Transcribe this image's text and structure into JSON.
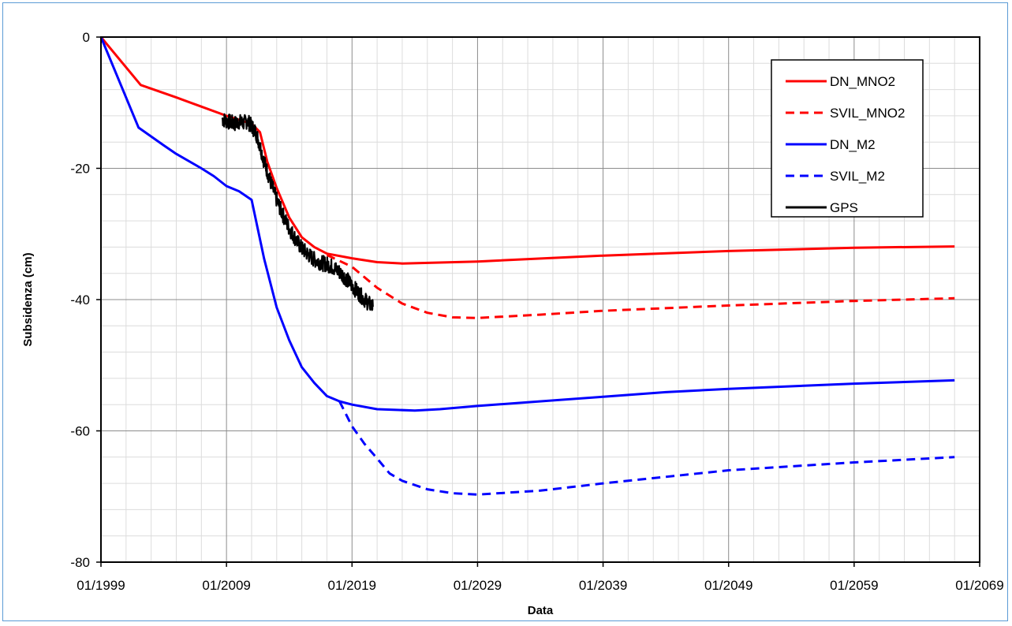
{
  "chart_data": {
    "type": "line",
    "xlabel": "Data",
    "ylabel": "Subsidenza (cm)",
    "xlim": [
      "01/1999",
      "01/2069"
    ],
    "ylim": [
      -80,
      0
    ],
    "x_ticks": [
      "01/1999",
      "01/2009",
      "01/2019",
      "01/2029",
      "01/2039",
      "01/2049",
      "01/2059",
      "01/2069"
    ],
    "y_ticks": [
      "0",
      "-20",
      "-40",
      "-60",
      "-80"
    ],
    "grid": true,
    "legend_position": "top-right",
    "series": [
      {
        "name": "DN_MNO2",
        "color": "#ff0000",
        "style": "solid",
        "points": [
          [
            "01/1999",
            0
          ],
          [
            "03/2002",
            -7.3
          ],
          [
            "01/2005",
            -9.2
          ],
          [
            "01/2009",
            -12
          ],
          [
            "01/2010",
            -12.6
          ],
          [
            "01/2011",
            -13.2
          ],
          [
            "09/2011",
            -14.5
          ],
          [
            "04/2012",
            -19
          ],
          [
            "01/2013",
            -23
          ],
          [
            "01/2014",
            -27.5
          ],
          [
            "01/2015",
            -30.5
          ],
          [
            "01/2016",
            -32
          ],
          [
            "01/2017",
            -33
          ],
          [
            "01/2019",
            -33.7
          ],
          [
            "01/2021",
            -34.3
          ],
          [
            "01/2023",
            -34.5
          ],
          [
            "01/2029",
            -34.2
          ],
          [
            "01/2039",
            -33.3
          ],
          [
            "01/2049",
            -32.6
          ],
          [
            "01/2059",
            -32.1
          ],
          [
            "01/2067",
            -31.9
          ]
        ]
      },
      {
        "name": "SVIL_MNO2",
        "color": "#ff0000",
        "style": "dashed",
        "points": [
          [
            "01/2017",
            -33.2
          ],
          [
            "01/2019",
            -35
          ],
          [
            "01/2021",
            -38.2
          ],
          [
            "01/2023",
            -40.6
          ],
          [
            "01/2025",
            -42
          ],
          [
            "01/2027",
            -42.7
          ],
          [
            "01/2029",
            -42.8
          ],
          [
            "01/2034",
            -42.3
          ],
          [
            "01/2039",
            -41.7
          ],
          [
            "01/2049",
            -40.9
          ],
          [
            "01/2059",
            -40.2
          ],
          [
            "01/2067",
            -39.8
          ]
        ]
      },
      {
        "name": "DN_M2",
        "color": "#0000ff",
        "style": "solid",
        "points": [
          [
            "01/1999",
            0
          ],
          [
            "01/2002",
            -13.8
          ],
          [
            "01/2004",
            -16.5
          ],
          [
            "01/2005",
            -17.8
          ],
          [
            "01/2007",
            -20
          ],
          [
            "01/2008",
            -21.2
          ],
          [
            "01/2009",
            -22.7
          ],
          [
            "01/2010",
            -23.5
          ],
          [
            "01/2011",
            -24.8
          ],
          [
            "01/2012",
            -33.8
          ],
          [
            "01/2013",
            -41.2
          ],
          [
            "01/2014",
            -46.2
          ],
          [
            "01/2015",
            -50.3
          ],
          [
            "01/2016",
            -52.7
          ],
          [
            "01/2017",
            -54.7
          ],
          [
            "01/2018",
            -55.5
          ],
          [
            "01/2019",
            -56
          ],
          [
            "01/2021",
            -56.7
          ],
          [
            "01/2024",
            -56.9
          ],
          [
            "01/2026",
            -56.7
          ],
          [
            "01/2029",
            -56.2
          ],
          [
            "01/2039",
            -54.8
          ],
          [
            "01/2044",
            -54.1
          ],
          [
            "01/2049",
            -53.6
          ],
          [
            "01/2059",
            -52.8
          ],
          [
            "01/2067",
            -52.3
          ]
        ]
      },
      {
        "name": "SVIL_M2",
        "color": "#0000ff",
        "style": "dashed",
        "points": [
          [
            "01/2018",
            -55.5
          ],
          [
            "01/2019",
            -59.3
          ],
          [
            "01/2020",
            -62
          ],
          [
            "01/2021",
            -64.2
          ],
          [
            "01/2022",
            -66.5
          ],
          [
            "01/2023",
            -67.6
          ],
          [
            "01/2025",
            -68.9
          ],
          [
            "01/2027",
            -69.5
          ],
          [
            "01/2029",
            -69.7
          ],
          [
            "01/2034",
            -69.1
          ],
          [
            "01/2039",
            -68
          ],
          [
            "01/2049",
            -66
          ],
          [
            "01/2059",
            -64.8
          ],
          [
            "01/2067",
            -64
          ]
        ]
      },
      {
        "name": "GPS",
        "color": "#000000",
        "style": "solid",
        "points": [
          [
            "09/2008",
            -12.5
          ],
          [
            "01/2009",
            -12.8
          ],
          [
            "05/2009",
            -13
          ],
          [
            "09/2009",
            -13.2
          ],
          [
            "01/2010",
            -12.9
          ],
          [
            "05/2010",
            -13.1
          ],
          [
            "09/2010",
            -12.8
          ],
          [
            "01/2011",
            -13.6
          ],
          [
            "05/2011",
            -14.5
          ],
          [
            "09/2011",
            -16.5
          ],
          [
            "01/2012",
            -19
          ],
          [
            "05/2012",
            -21
          ],
          [
            "09/2012",
            -23
          ],
          [
            "01/2013",
            -24.8
          ],
          [
            "05/2013",
            -26.4
          ],
          [
            "09/2013",
            -27.8
          ],
          [
            "01/2014",
            -29.2
          ],
          [
            "05/2014",
            -30.2
          ],
          [
            "09/2014",
            -31.3
          ],
          [
            "01/2015",
            -32.2
          ],
          [
            "05/2015",
            -32.8
          ],
          [
            "09/2015",
            -33.4
          ],
          [
            "01/2016",
            -33.9
          ],
          [
            "05/2016",
            -34.2
          ],
          [
            "09/2016",
            -34.5
          ],
          [
            "01/2017",
            -34.6
          ],
          [
            "05/2017",
            -34.9
          ],
          [
            "09/2017",
            -35.3
          ],
          [
            "01/2018",
            -35.8
          ],
          [
            "05/2018",
            -36.4
          ],
          [
            "09/2018",
            -37.1
          ],
          [
            "01/2019",
            -37.9
          ],
          [
            "05/2019",
            -38.6
          ],
          [
            "09/2019",
            -39.3
          ],
          [
            "01/2020",
            -40
          ],
          [
            "05/2020",
            -40.6
          ],
          [
            "09/2020",
            -41.1
          ]
        ]
      }
    ]
  }
}
